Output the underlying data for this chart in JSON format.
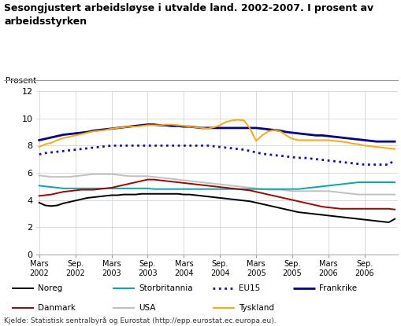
{
  "title": "Sesongjustert arbeidsløyse i utvalde land. 2002-2007. I prosent av\narbeidsstyrken",
  "ylabel": "Prosent",
  "ylim": [
    0,
    12
  ],
  "yticks": [
    0,
    2,
    4,
    6,
    8,
    10,
    12
  ],
  "source": "Kjelde: Statistisk sentralbyrå og Eurostat (http://epp.eurostat.ec.europa.eu).",
  "xtick_labels": [
    "Mars\n2002",
    "Sep.\n2002",
    "Mars\n2003",
    "Sep.\n2003",
    "Mars\n2004",
    "Sep.\n2004",
    "Mars\n2005",
    "Sep.\n2005",
    "Mars\n2006",
    "Sep.\n2006"
  ],
  "xtick_positions": [
    0,
    6,
    12,
    18,
    24,
    30,
    36,
    42,
    48,
    54
  ],
  "series": {
    "Noreg": {
      "color": "#000000",
      "linestyle": "solid",
      "linewidth": 1.4,
      "values": [
        3.8,
        3.6,
        3.55,
        3.6,
        3.75,
        3.85,
        3.95,
        4.05,
        4.15,
        4.2,
        4.25,
        4.3,
        4.35,
        4.35,
        4.4,
        4.4,
        4.4,
        4.45,
        4.45,
        4.45,
        4.45,
        4.45,
        4.45,
        4.45,
        4.4,
        4.4,
        4.35,
        4.3,
        4.25,
        4.2,
        4.15,
        4.1,
        4.05,
        4.0,
        3.95,
        3.9,
        3.8,
        3.7,
        3.6,
        3.5,
        3.4,
        3.3,
        3.2,
        3.1,
        3.05,
        3.0,
        2.95,
        2.9,
        2.85,
        2.8,
        2.75,
        2.7,
        2.65,
        2.6,
        2.55,
        2.5,
        2.45,
        2.4,
        2.35,
        2.6
      ]
    },
    "Danmark": {
      "color": "#aa0000",
      "linestyle": "solid",
      "linewidth": 1.4,
      "values": [
        4.3,
        4.35,
        4.4,
        4.5,
        4.6,
        4.65,
        4.7,
        4.75,
        4.75,
        4.75,
        4.8,
        4.85,
        4.9,
        5.0,
        5.1,
        5.2,
        5.3,
        5.4,
        5.5,
        5.5,
        5.45,
        5.4,
        5.35,
        5.3,
        5.25,
        5.2,
        5.15,
        5.1,
        5.05,
        5.0,
        4.95,
        4.9,
        4.85,
        4.8,
        4.75,
        4.7,
        4.6,
        4.5,
        4.4,
        4.3,
        4.2,
        4.1,
        4.0,
        3.9,
        3.8,
        3.7,
        3.6,
        3.5,
        3.45,
        3.4,
        3.35,
        3.35,
        3.35,
        3.35,
        3.35,
        3.35,
        3.35,
        3.35,
        3.35,
        3.3
      ]
    },
    "Storbritannia": {
      "color": "#00aaaa",
      "linestyle": "solid",
      "linewidth": 1.4,
      "values": [
        5.05,
        5.0,
        4.95,
        4.9,
        4.85,
        4.85,
        4.85,
        4.85,
        4.85,
        4.85,
        4.85,
        4.85,
        4.85,
        4.85,
        4.85,
        4.85,
        4.85,
        4.85,
        4.85,
        4.8,
        4.8,
        4.8,
        4.8,
        4.8,
        4.8,
        4.8,
        4.8,
        4.8,
        4.8,
        4.8,
        4.8,
        4.8,
        4.8,
        4.8,
        4.8,
        4.8,
        4.8,
        4.8,
        4.8,
        4.8,
        4.8,
        4.8,
        4.8,
        4.8,
        4.85,
        4.9,
        4.95,
        5.0,
        5.05,
        5.1,
        5.15,
        5.2,
        5.25,
        5.3,
        5.3,
        5.3,
        5.3,
        5.3,
        5.3,
        5.3
      ]
    },
    "USA": {
      "color": "#c0c0c0",
      "linestyle": "solid",
      "linewidth": 1.4,
      "values": [
        5.8,
        5.75,
        5.7,
        5.7,
        5.7,
        5.7,
        5.75,
        5.8,
        5.85,
        5.9,
        5.9,
        5.9,
        5.9,
        5.85,
        5.8,
        5.75,
        5.75,
        5.75,
        5.75,
        5.7,
        5.65,
        5.6,
        5.55,
        5.5,
        5.45,
        5.4,
        5.35,
        5.3,
        5.25,
        5.2,
        5.15,
        5.1,
        5.05,
        5.0,
        4.95,
        4.9,
        4.85,
        4.8,
        4.75,
        4.75,
        4.75,
        4.7,
        4.65,
        4.65,
        4.65,
        4.65,
        4.65,
        4.65,
        4.65,
        4.6,
        4.55,
        4.5,
        4.45,
        4.4,
        4.4,
        4.4,
        4.4,
        4.4,
        4.4,
        4.4
      ]
    },
    "EU15": {
      "color": "#1111bb",
      "linestyle": "dotted",
      "linewidth": 2.0,
      "values": [
        7.35,
        7.45,
        7.5,
        7.55,
        7.6,
        7.65,
        7.7,
        7.75,
        7.8,
        7.85,
        7.9,
        7.95,
        8.0,
        8.0,
        8.0,
        8.0,
        8.0,
        8.0,
        8.0,
        8.0,
        8.0,
        8.0,
        8.0,
        8.0,
        8.0,
        8.0,
        8.0,
        8.0,
        8.0,
        7.95,
        7.9,
        7.85,
        7.8,
        7.75,
        7.7,
        7.6,
        7.5,
        7.4,
        7.35,
        7.3,
        7.25,
        7.2,
        7.15,
        7.1,
        7.1,
        7.05,
        7.0,
        6.95,
        6.9,
        6.85,
        6.8,
        6.75,
        6.7,
        6.65,
        6.6,
        6.6,
        6.6,
        6.6,
        6.6,
        6.95
      ]
    },
    "Tyskland": {
      "color": "#ffaa00",
      "linestyle": "solid",
      "linewidth": 1.4,
      "values": [
        7.9,
        8.1,
        8.2,
        8.4,
        8.55,
        8.65,
        8.75,
        8.85,
        8.95,
        9.05,
        9.1,
        9.15,
        9.25,
        9.3,
        9.35,
        9.4,
        9.4,
        9.45,
        9.5,
        9.5,
        9.5,
        9.55,
        9.55,
        9.5,
        9.45,
        9.4,
        9.35,
        9.3,
        9.25,
        9.35,
        9.5,
        9.75,
        9.85,
        9.9,
        9.85,
        9.25,
        8.35,
        8.75,
        9.05,
        9.15,
        9.05,
        8.75,
        8.5,
        8.4,
        8.4,
        8.4,
        8.4,
        8.4,
        8.4,
        8.35,
        8.3,
        8.25,
        8.15,
        8.1,
        8.0,
        7.95,
        7.9,
        7.85,
        7.8,
        7.75
      ]
    },
    "Frankrike": {
      "color": "#000099",
      "linestyle": "solid",
      "linewidth": 2.0,
      "values": [
        8.4,
        8.5,
        8.6,
        8.7,
        8.8,
        8.85,
        8.9,
        8.95,
        9.0,
        9.1,
        9.15,
        9.2,
        9.25,
        9.3,
        9.35,
        9.4,
        9.45,
        9.5,
        9.55,
        9.55,
        9.5,
        9.5,
        9.45,
        9.45,
        9.4,
        9.4,
        9.35,
        9.3,
        9.3,
        9.3,
        9.3,
        9.3,
        9.3,
        9.3,
        9.3,
        9.3,
        9.3,
        9.25,
        9.2,
        9.15,
        9.1,
        9.0,
        8.95,
        8.9,
        8.85,
        8.8,
        8.75,
        8.75,
        8.7,
        8.65,
        8.6,
        8.55,
        8.5,
        8.45,
        8.4,
        8.35,
        8.3,
        8.3,
        8.3,
        8.3
      ]
    }
  },
  "legend_row1": [
    {
      "label": "Noreg",
      "color": "#000000",
      "linestyle": "solid",
      "linewidth": 1.4
    },
    {
      "label": "Storbritannia",
      "color": "#00aaaa",
      "linestyle": "solid",
      "linewidth": 1.4
    },
    {
      "label": "EU15",
      "color": "#1111bb",
      "linestyle": "dotted",
      "linewidth": 2.0
    },
    {
      "label": "Frankrike",
      "color": "#000099",
      "linestyle": "solid",
      "linewidth": 2.0
    }
  ],
  "legend_row2": [
    {
      "label": "Danmark",
      "color": "#aa0000",
      "linestyle": "solid",
      "linewidth": 1.4
    },
    {
      "label": "USA",
      "color": "#c0c0c0",
      "linestyle": "solid",
      "linewidth": 1.4
    },
    {
      "label": "Tyskland",
      "color": "#ffaa00",
      "linestyle": "solid",
      "linewidth": 1.4
    }
  ]
}
